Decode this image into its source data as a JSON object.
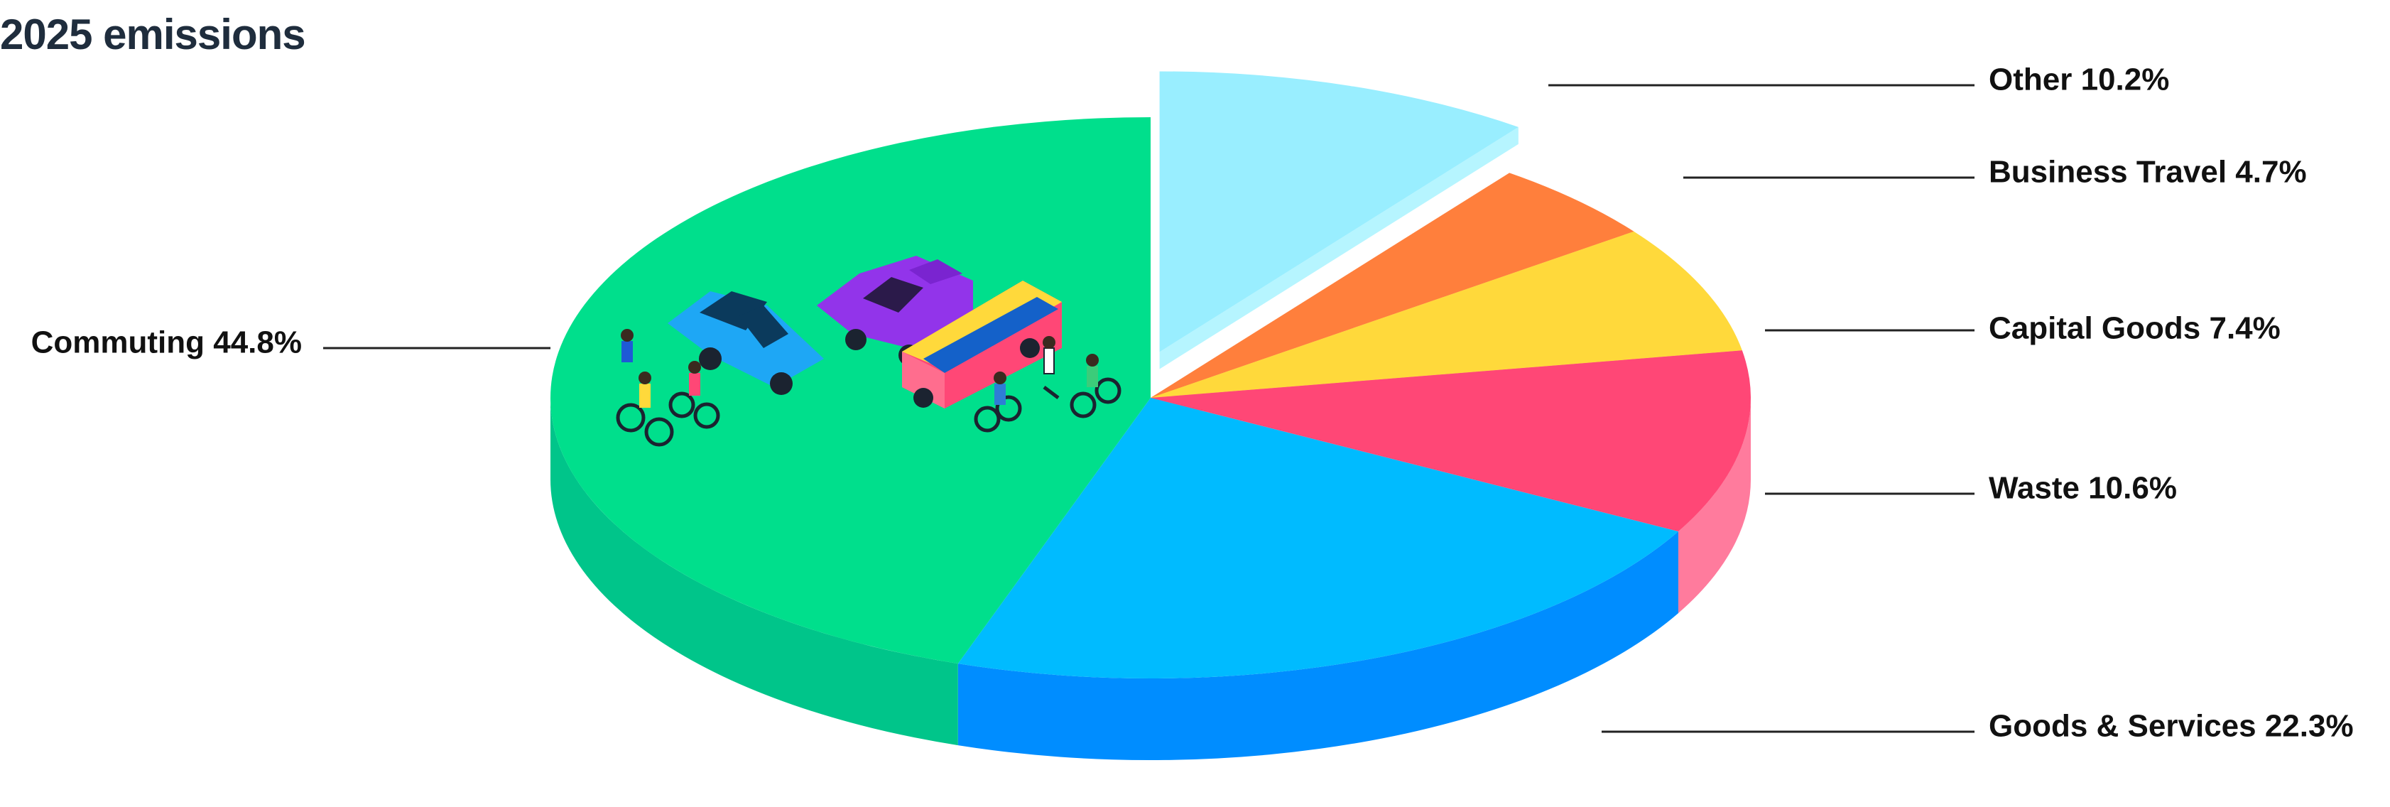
{
  "title": "2025 emissions",
  "chart_data": {
    "type": "pie",
    "title": "2025 emissions",
    "style": "3d-exploded",
    "slices": [
      {
        "label": "Other",
        "value": 10.2,
        "display": "Other 10.2%",
        "color": "#99eeff",
        "side": "#b6f5ff",
        "exploded": true
      },
      {
        "label": "Business Travel",
        "value": 4.7,
        "display": "Business Travel 4.7%",
        "color": "#ff7f3c",
        "side": "#ff9a63",
        "exploded": false
      },
      {
        "label": "Capital Goods",
        "value": 7.4,
        "display": "Capital Goods 7.4%",
        "color": "#ffd93b",
        "side": "#ffe583",
        "exploded": false
      },
      {
        "label": "Waste",
        "value": 10.6,
        "display": "Waste 10.6%",
        "color": "#ff4776",
        "side": "#ff7b9d",
        "exploded": false
      },
      {
        "label": "Goods & Services",
        "value": 22.3,
        "display": "Goods & Services 22.3%",
        "color": "#00bbff",
        "side": "#008dff",
        "exploded": false
      },
      {
        "label": "Commuting",
        "value": 44.8,
        "display": "Commuting 44.8%",
        "color": "#00df8c",
        "side": "#00c58a",
        "exploded": false
      }
    ],
    "illustration": "vehicles-and-cyclists-icon"
  }
}
